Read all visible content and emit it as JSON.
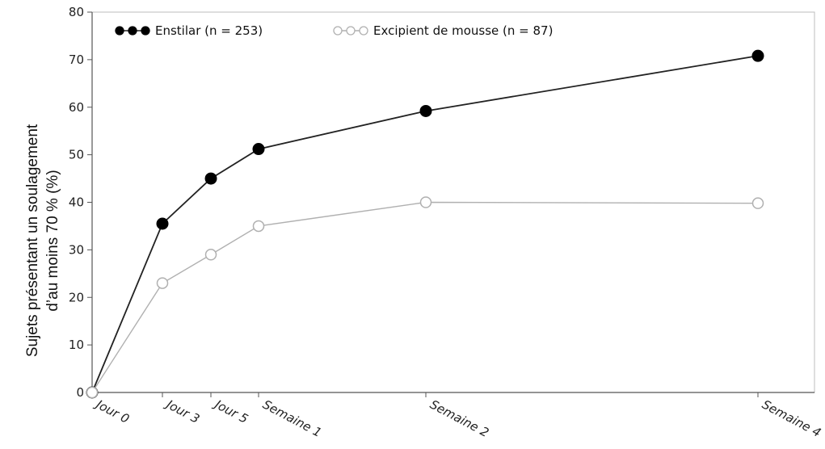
{
  "chart_data": {
    "type": "line",
    "categories": [
      "Jour 0",
      "Jour 3",
      "Jour 5",
      "Semaine 1",
      "Semaine 2",
      "Semaine 4"
    ],
    "x_days": [
      0,
      3,
      5,
      7,
      14,
      28
    ],
    "series": [
      {
        "name": "Enstilar (n = 253)",
        "values": [
          0,
          35.5,
          45,
          51.2,
          59.2,
          70.8
        ],
        "color": "#222222",
        "marker": "filled-circle"
      },
      {
        "name": "Excipient de mousse (n = 87)",
        "values": [
          0,
          23,
          29,
          35,
          40,
          39.8
        ],
        "color": "#b0b0b0",
        "marker": "open-circle"
      }
    ],
    "yticks": [
      0,
      10,
      20,
      30,
      40,
      50,
      60,
      70,
      80
    ],
    "ylim": [
      0,
      80
    ],
    "ylabel_line1": "Sujets présentant un soulagement",
    "ylabel_line2": "d’au moins 70 % (%)",
    "legend_position": "top-left",
    "grid": false
  }
}
